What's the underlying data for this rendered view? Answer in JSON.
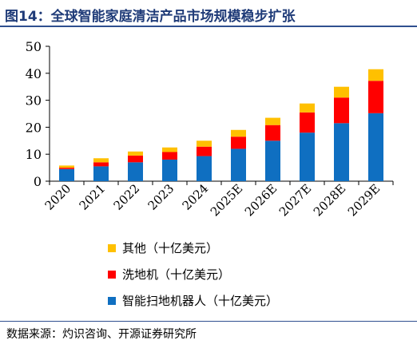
{
  "title": "图14：全球智能家庭清洁产品市场规模稳步扩张",
  "source": "数据来源：灼识咨询、开源证券研究所",
  "colors": {
    "robot_vacuum": "#0f6fc1",
    "floor_washer": "#ff0000",
    "other": "#ffc000",
    "title": "#1f3b78"
  },
  "chart_data": {
    "type": "bar",
    "stacked": true,
    "categories": [
      "2020",
      "2021",
      "2022",
      "2023",
      "2024",
      "2025E",
      "2026E",
      "2027E",
      "2028E",
      "2029E"
    ],
    "series": [
      {
        "name": "智能扫地机器人（十亿美元）",
        "color": "#0f6fc1",
        "values": [
          4.5,
          5.5,
          7.0,
          8.0,
          9.3,
          12.0,
          15.0,
          18.0,
          21.5,
          25.2
        ]
      },
      {
        "name": "洗地机（十亿美元）",
        "color": "#ff0000",
        "values": [
          0.5,
          1.5,
          2.5,
          2.8,
          3.5,
          4.5,
          5.8,
          7.5,
          9.5,
          12.0
        ]
      },
      {
        "name": "其他（十亿美元）",
        "color": "#ffc000",
        "values": [
          0.8,
          1.5,
          1.5,
          1.7,
          2.2,
          2.5,
          2.7,
          3.3,
          4.0,
          4.3
        ]
      }
    ],
    "ylim": [
      0,
      50
    ],
    "yticks": [
      0,
      10,
      20,
      30,
      40,
      50
    ],
    "legend_position": "bottom",
    "legend_order": [
      2,
      1,
      0
    ]
  }
}
